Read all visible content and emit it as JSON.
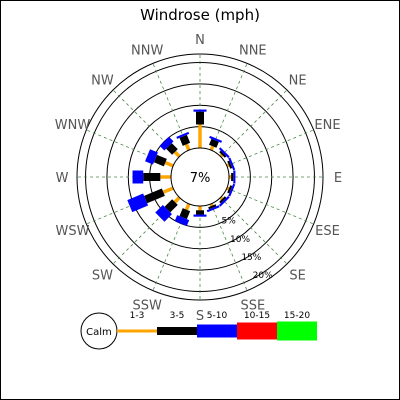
{
  "chart_data": {
    "type": "windrose",
    "title": "Windrose (mph)",
    "calm_label": "Calm",
    "calm_percent_label": "7%",
    "calm_percent": 7,
    "directions": [
      "N",
      "NNE",
      "NE",
      "ENE",
      "E",
      "ESE",
      "SE",
      "SSE",
      "S",
      "SSW",
      "SW",
      "WSW",
      "W",
      "WNW",
      "NW",
      "NNW"
    ],
    "radial_ticks": [
      {
        "value": 5,
        "label": "5%"
      },
      {
        "value": 10,
        "label": "10%"
      },
      {
        "value": 15,
        "label": "15%"
      },
      {
        "value": 20,
        "label": "20%"
      }
    ],
    "radial_max": 22,
    "grid": true,
    "legend_position": "bottom",
    "series": [
      {
        "name": "1-3",
        "color": "#ffa500",
        "values": [
          5.5,
          1.0,
          0.5,
          0.5,
          0.5,
          0.5,
          0.5,
          0.5,
          1.0,
          1.5,
          1.5,
          2.5,
          2.5,
          2.0,
          1.5,
          1.5
        ]
      },
      {
        "name": "3-5",
        "color": "#000000",
        "values": [
          3.0,
          1.5,
          0.5,
          0.5,
          0.5,
          0.5,
          0.5,
          0.5,
          1.0,
          2.0,
          2.5,
          4.5,
          4.0,
          2.5,
          2.0,
          2.0
        ]
      },
      {
        "name": "5-10",
        "color": "#0000ff",
        "values": [
          0.5,
          0.5,
          0.5,
          0.5,
          0.5,
          0.5,
          0.5,
          0.5,
          0.5,
          1.5,
          2.5,
          4.0,
          2.5,
          2.0,
          1.5,
          0.5
        ]
      },
      {
        "name": "10-15",
        "color": "#ff0000",
        "values": [
          0,
          0,
          0,
          0,
          0,
          0,
          0,
          0,
          0,
          0,
          0,
          0,
          0,
          0,
          0,
          0
        ]
      },
      {
        "name": "15-20",
        "color": "#00ff00",
        "values": [
          0,
          0,
          0,
          0,
          0,
          0,
          0,
          0,
          0,
          0,
          0,
          0,
          0,
          0,
          0,
          0
        ]
      }
    ]
  }
}
